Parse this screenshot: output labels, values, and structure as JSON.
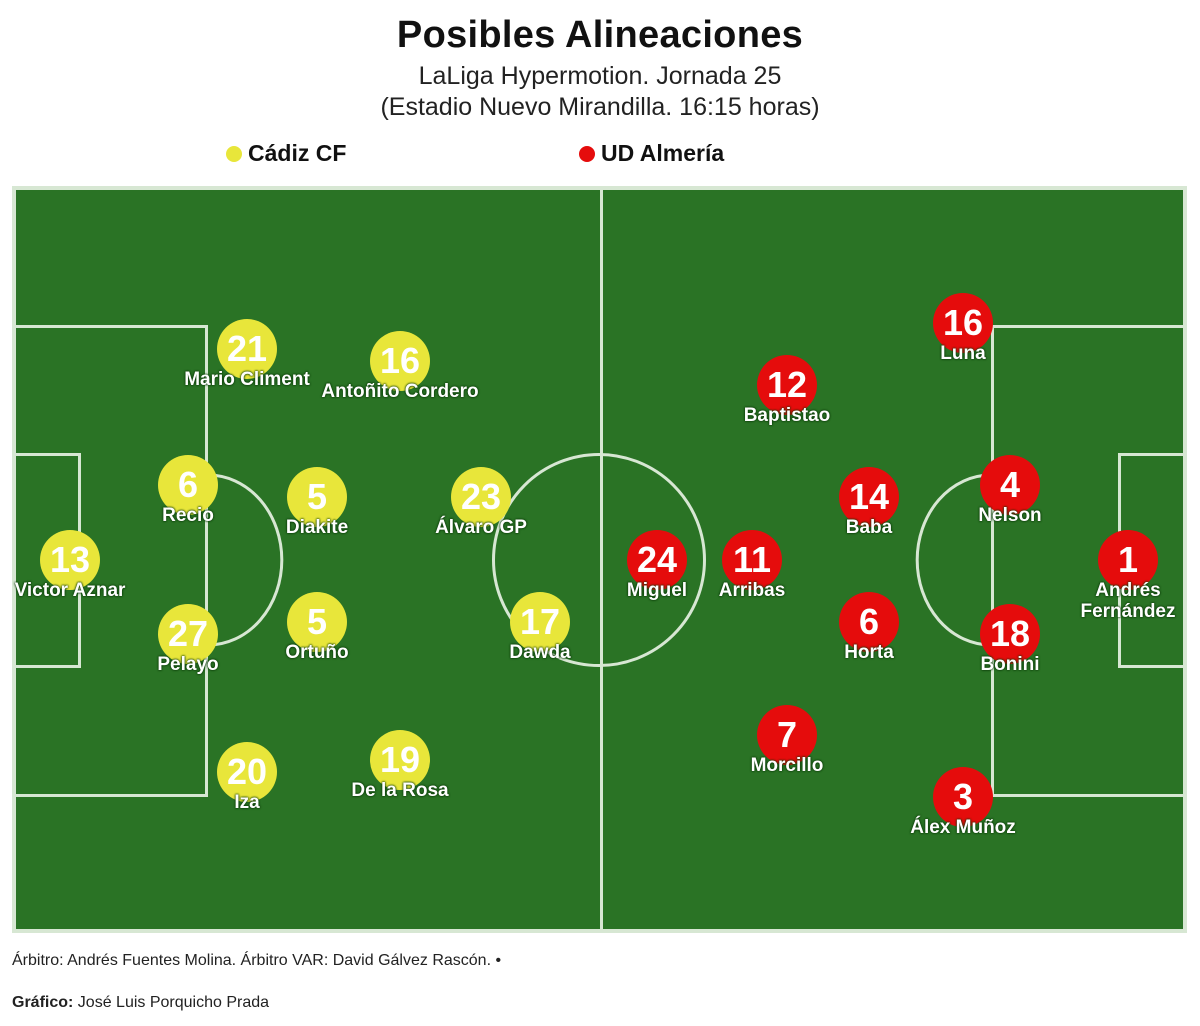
{
  "title": "Posibles Alineaciones",
  "subtitle_line1": "LaLiga Hypermotion. Jornada 25",
  "subtitle_line2": "(Estadio Nuevo Mirandilla. 16:15 horas)",
  "colors": {
    "home": "#e8e63a",
    "away": "#e50c0c",
    "pitch": "#2a7325",
    "lines": "#d7e7d3"
  },
  "teams": {
    "home": {
      "name": "Cádiz CF"
    },
    "away": {
      "name": "UD Almería"
    }
  },
  "footer": {
    "referee": "Árbitro: Andrés Fuentes Molina. Árbitro VAR: David Gálvez Rascón. •",
    "graphic_label": "Gráfico:",
    "graphic_author": "José Luis Porquicho Prada"
  },
  "players": {
    "home": [
      {
        "number": "13",
        "name": "Victor Aznar"
      },
      {
        "number": "21",
        "name": "Mario Climent"
      },
      {
        "number": "6",
        "name": "Recio"
      },
      {
        "number": "27",
        "name": "Pelayo"
      },
      {
        "number": "20",
        "name": "Iza"
      },
      {
        "number": "16",
        "name": "Antoñito Cordero"
      },
      {
        "number": "5",
        "name": "Diakite"
      },
      {
        "number": "5",
        "name": "Ortuño"
      },
      {
        "number": "19",
        "name": "De la Rosa"
      },
      {
        "number": "23",
        "name": "Álvaro GP"
      },
      {
        "number": "17",
        "name": "Dawda"
      }
    ],
    "away": [
      {
        "number": "24",
        "name": "Miguel"
      },
      {
        "number": "11",
        "name": "Arribas"
      },
      {
        "number": "12",
        "name": "Baptistao"
      },
      {
        "number": "7",
        "name": "Morcillo"
      },
      {
        "number": "14",
        "name": "Baba"
      },
      {
        "number": "6",
        "name": "Horta"
      },
      {
        "number": "16",
        "name": "Luna"
      },
      {
        "number": "4",
        "name": "Nelson"
      },
      {
        "number": "18",
        "name": "Bonini"
      },
      {
        "number": "3",
        "name": "Álex Muñoz"
      },
      {
        "number": "1",
        "name": "Andrés Fernández"
      }
    ]
  }
}
